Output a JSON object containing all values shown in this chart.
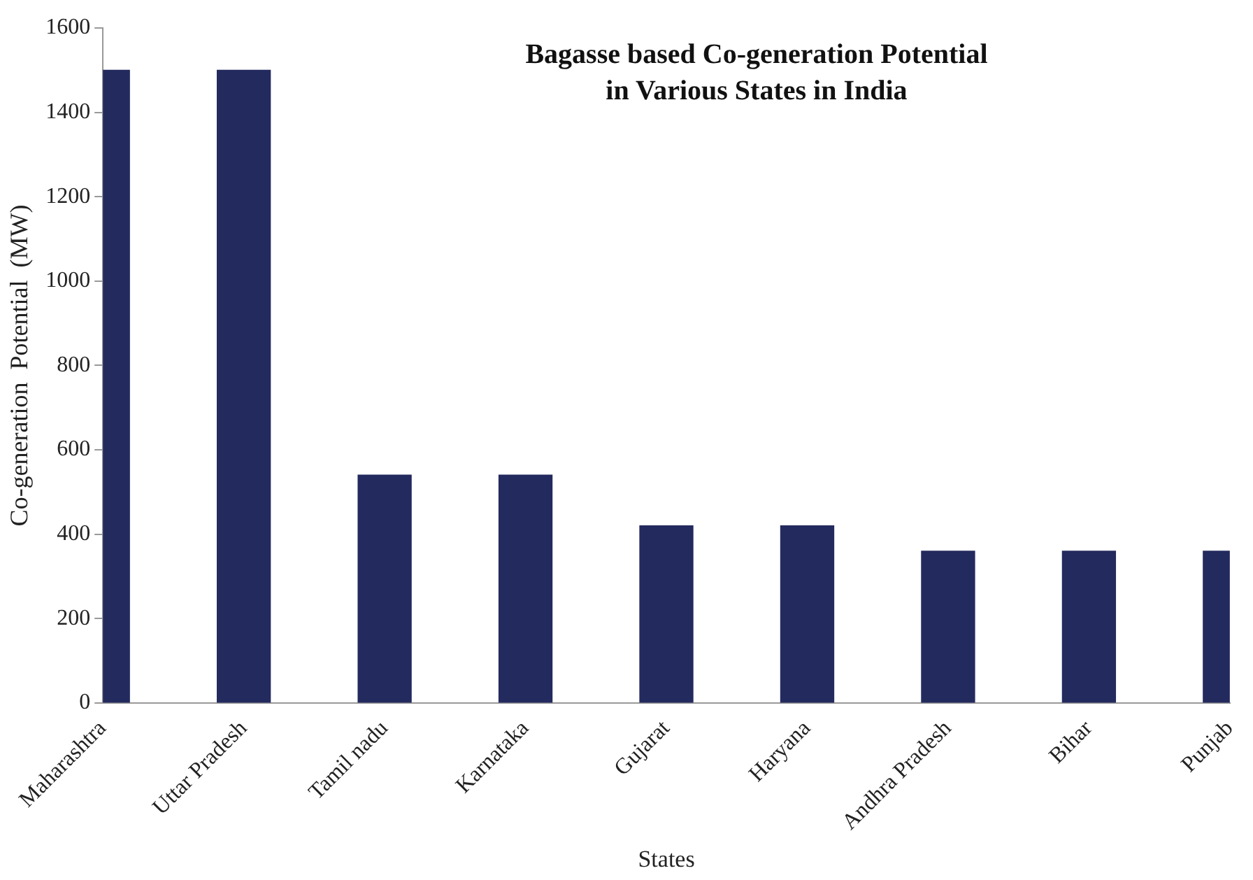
{
  "chart_data": {
    "type": "bar",
    "title": "Bagasse based Co-generation Potential\nin Various States in India",
    "xlabel": "States",
    "ylabel": "Co-generation  Potential  (MW)",
    "categories": [
      "Maharashtra",
      "Uttar Pradesh",
      "Tamil nadu",
      "Karnataka",
      "Gujarat",
      "Haryana",
      "Andhra Pradesh",
      "Bihar",
      "Punjab"
    ],
    "values": [
      1500,
      1500,
      540,
      540,
      420,
      420,
      360,
      360,
      360
    ],
    "color": "#232a5e",
    "ylim": [
      0,
      1600
    ],
    "yticks": [
      0,
      200,
      400,
      600,
      800,
      1000,
      1200,
      1400,
      1600
    ],
    "grid": false,
    "legend": false
  }
}
